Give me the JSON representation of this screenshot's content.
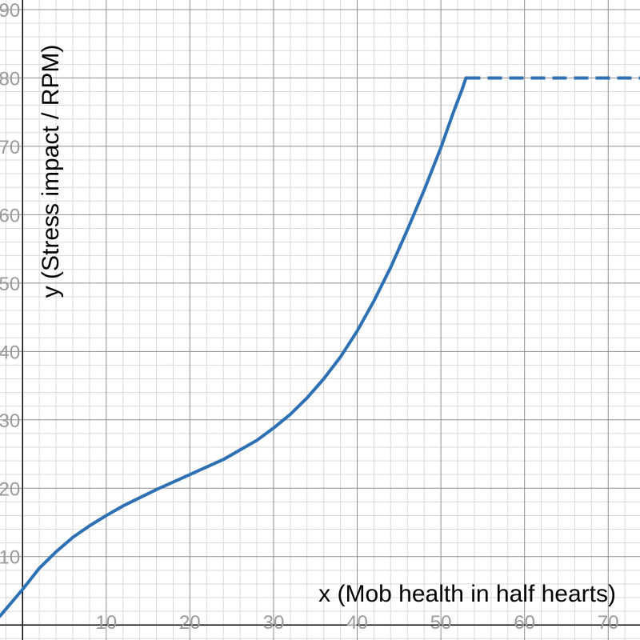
{
  "chart_data": {
    "type": "line",
    "xlabel": "x (Mob health in half hearts)",
    "ylabel": "y (Stress impact / RPM)",
    "xlim": [
      -2.7,
      73.8
    ],
    "ylim": [
      -2.2,
      91.4
    ],
    "x_ticks": [
      10,
      20,
      30,
      40,
      50,
      60,
      70
    ],
    "y_ticks": [
      10,
      20,
      30,
      40,
      50,
      60,
      70,
      80,
      90
    ],
    "grid": true,
    "series": [
      {
        "style": "solid",
        "color": "#2d70b3",
        "points": [
          [
            -2.7,
            1.3
          ],
          [
            0,
            5.2
          ],
          [
            2,
            8.3
          ],
          [
            4,
            10.7
          ],
          [
            6,
            12.8
          ],
          [
            8,
            14.5
          ],
          [
            10,
            16.0
          ],
          [
            12,
            17.4
          ],
          [
            14,
            18.6
          ],
          [
            16,
            19.8
          ],
          [
            18,
            20.9
          ],
          [
            20,
            22.0
          ],
          [
            22,
            23.1
          ],
          [
            24,
            24.2
          ],
          [
            26,
            25.6
          ],
          [
            28,
            27.0
          ],
          [
            30,
            28.8
          ],
          [
            32,
            30.8
          ],
          [
            34,
            33.2
          ],
          [
            36,
            36.0
          ],
          [
            38,
            39.2
          ],
          [
            40,
            43.0
          ],
          [
            42,
            47.4
          ],
          [
            44,
            52.3
          ],
          [
            46,
            57.8
          ],
          [
            48,
            63.6
          ],
          [
            50,
            69.8
          ],
          [
            51.5,
            75.0
          ],
          [
            52.5,
            78.2
          ],
          [
            53,
            80.0
          ]
        ]
      },
      {
        "style": "dashed",
        "color": "#2d70b3",
        "points": [
          [
            53,
            80.0
          ],
          [
            73.8,
            80.0
          ]
        ]
      }
    ]
  }
}
